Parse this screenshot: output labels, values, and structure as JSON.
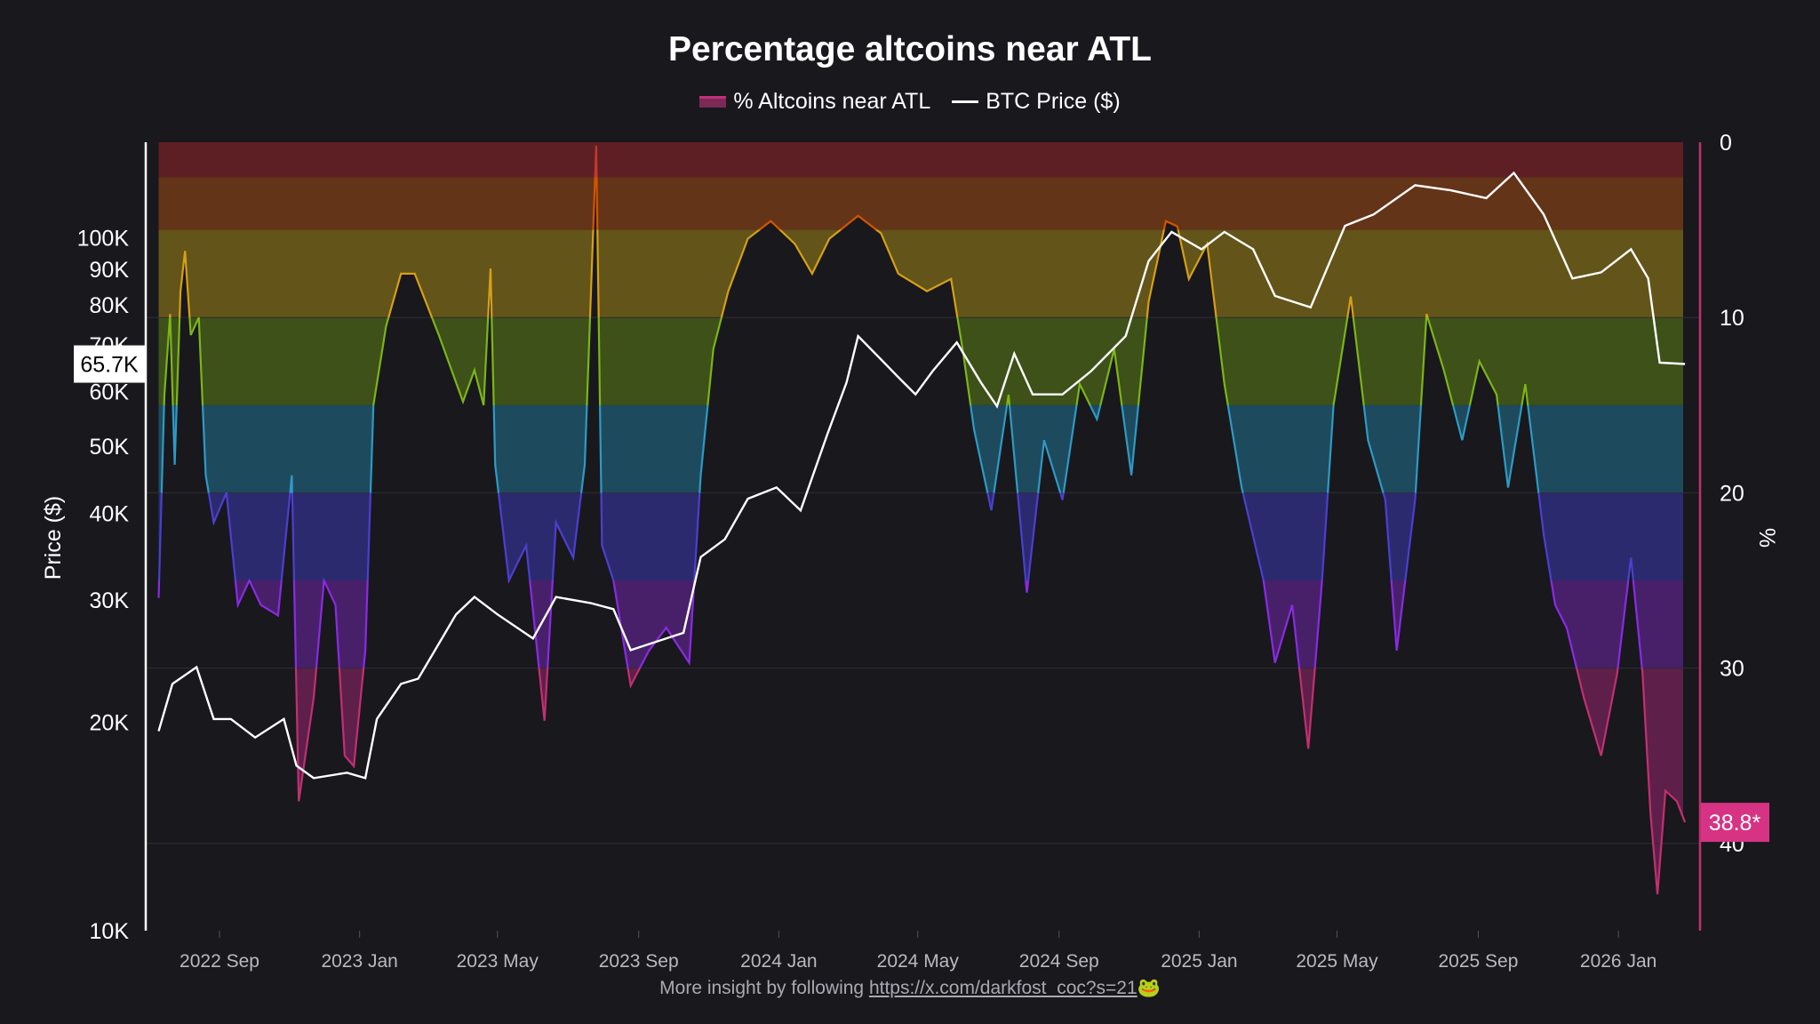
{
  "chart_data": {
    "type": "area+line",
    "title": "Percentage altcoins near ATL",
    "legend": [
      "% Altcoins near ATL",
      "BTC Price ($)"
    ],
    "legend_placement": "top-center",
    "left_axis": {
      "label": "Price ($)",
      "scale": "log",
      "range": [
        10000,
        130000
      ],
      "ticks": [
        "10K",
        "20K",
        "30K",
        "40K",
        "50K",
        "60K",
        "70K",
        "80K",
        "90K",
        "100K"
      ],
      "tick_values": [
        10000,
        20000,
        30000,
        40000,
        50000,
        60000,
        70000,
        80000,
        90000,
        100000
      ]
    },
    "right_axis": {
      "label": "%",
      "inverted": true,
      "range": [
        0,
        45
      ],
      "ticks": [
        "0",
        "10",
        "20",
        "30",
        "40"
      ],
      "tick_values": [
        0,
        10,
        20,
        30,
        40
      ]
    },
    "x_ticks": [
      {
        "label": "2022 Sep",
        "date": "2022-09-01"
      },
      {
        "label": "2023 Jan",
        "date": "2023-01-01"
      },
      {
        "label": "2023 May",
        "date": "2023-05-01"
      },
      {
        "label": "2023 Sep",
        "date": "2023-09-01"
      },
      {
        "label": "2024 Jan",
        "date": "2024-01-01"
      },
      {
        "label": "2024 May",
        "date": "2024-05-01"
      },
      {
        "label": "2024 Sep",
        "date": "2024-09-01"
      },
      {
        "label": "2025 Jan",
        "date": "2025-01-01"
      },
      {
        "label": "2025 May",
        "date": "2025-05-01"
      },
      {
        "label": "2025 Sep",
        "date": "2025-09-01"
      },
      {
        "label": "2026 Jan",
        "date": "2026-01-01"
      }
    ],
    "grid": true,
    "bands": [
      {
        "from": 0,
        "to": 2,
        "color": "#5e1f24",
        "line": "#c0392b"
      },
      {
        "from": 2,
        "to": 5,
        "color": "#643418",
        "line": "#d35400"
      },
      {
        "from": 5,
        "to": 10,
        "color": "#635419",
        "line": "#d4a017"
      },
      {
        "from": 10,
        "to": 15,
        "color": "#3d5119",
        "line": "#7cb518"
      },
      {
        "from": 15,
        "to": 20,
        "color": "#1e4a5e",
        "line": "#2e9ac4"
      },
      {
        "from": 20,
        "to": 25,
        "color": "#2c2a6e",
        "line": "#4b3fd0"
      },
      {
        "from": 25,
        "to": 30,
        "color": "#48206a",
        "line": "#8a2be2"
      },
      {
        "from": 30,
        "to": 45,
        "color": "#5e1f4a",
        "line": "#c2306f"
      }
    ],
    "series": [
      {
        "name": "% Altcoins near ATL",
        "axis": "right",
        "data": [
          [
            "2022-07-10",
            26
          ],
          [
            "2022-07-15",
            14.4
          ],
          [
            "2022-07-20",
            9.8
          ],
          [
            "2022-07-24",
            18.4
          ],
          [
            "2022-07-29",
            8.5
          ],
          [
            "2022-08-02",
            6.2
          ],
          [
            "2022-08-07",
            11
          ],
          [
            "2022-08-14",
            10
          ],
          [
            "2022-08-20",
            19
          ],
          [
            "2022-08-27",
            21.7
          ],
          [
            "2022-09-07",
            20
          ],
          [
            "2022-09-17",
            26.4
          ],
          [
            "2022-09-27",
            25
          ],
          [
            "2022-10-07",
            26.4
          ],
          [
            "2022-10-22",
            27
          ],
          [
            "2022-11-03",
            19
          ],
          [
            "2022-11-09",
            37.6
          ],
          [
            "2022-11-22",
            31.7
          ],
          [
            "2022-12-01",
            25
          ],
          [
            "2022-12-11",
            26.4
          ],
          [
            "2022-12-19",
            35
          ],
          [
            "2022-12-27",
            35.6
          ],
          [
            "2023-01-06",
            29
          ],
          [
            "2023-01-13",
            15
          ],
          [
            "2023-01-24",
            10.5
          ],
          [
            "2023-02-06",
            7.5
          ],
          [
            "2023-02-18",
            7.5
          ],
          [
            "2023-03-11",
            11
          ],
          [
            "2023-04-01",
            14.8
          ],
          [
            "2023-04-11",
            13
          ],
          [
            "2023-04-19",
            15
          ],
          [
            "2023-04-25",
            7.2
          ],
          [
            "2023-04-29",
            18.4
          ],
          [
            "2023-05-11",
            25
          ],
          [
            "2023-05-26",
            23
          ],
          [
            "2023-06-11",
            33
          ],
          [
            "2023-06-21",
            21.7
          ],
          [
            "2023-07-06",
            23.7
          ],
          [
            "2023-07-16",
            18.4
          ],
          [
            "2023-07-26",
            0.2
          ],
          [
            "2023-07-31",
            23
          ],
          [
            "2023-08-10",
            25
          ],
          [
            "2023-08-25",
            31
          ],
          [
            "2023-09-10",
            29
          ],
          [
            "2023-09-25",
            27.7
          ],
          [
            "2023-10-15",
            29.7
          ],
          [
            "2023-10-25",
            19
          ],
          [
            "2023-11-05",
            11.8
          ],
          [
            "2023-11-18",
            8.5
          ],
          [
            "2023-12-05",
            5.5
          ],
          [
            "2023-12-25",
            4.5
          ],
          [
            "2024-01-15",
            5.8
          ],
          [
            "2024-01-30",
            7.5
          ],
          [
            "2024-02-14",
            5.5
          ],
          [
            "2024-03-10",
            4.2
          ],
          [
            "2024-03-30",
            5.2
          ],
          [
            "2024-04-14",
            7.5
          ],
          [
            "2024-05-09",
            8.5
          ],
          [
            "2024-05-30",
            7.8
          ],
          [
            "2024-06-09",
            11.8
          ],
          [
            "2024-06-19",
            16.4
          ],
          [
            "2024-07-04",
            21
          ],
          [
            "2024-07-19",
            14.4
          ],
          [
            "2024-08-04",
            25.7
          ],
          [
            "2024-08-19",
            17
          ],
          [
            "2024-09-04",
            20.4
          ],
          [
            "2024-09-19",
            13.8
          ],
          [
            "2024-10-04",
            15.8
          ],
          [
            "2024-10-19",
            11.8
          ],
          [
            "2024-11-03",
            19
          ],
          [
            "2024-11-18",
            9.1
          ],
          [
            "2024-12-03",
            4.5
          ],
          [
            "2024-12-13",
            4.8
          ],
          [
            "2024-12-23",
            7.8
          ],
          [
            "2025-01-08",
            5.8
          ],
          [
            "2025-01-23",
            13.8
          ],
          [
            "2025-02-07",
            19.7
          ],
          [
            "2025-02-26",
            25
          ],
          [
            "2025-03-08",
            29.7
          ],
          [
            "2025-03-23",
            26.4
          ],
          [
            "2025-04-06",
            34.6
          ],
          [
            "2025-04-18",
            25
          ],
          [
            "2025-04-28",
            15
          ],
          [
            "2025-05-13",
            8.8
          ],
          [
            "2025-05-28",
            17
          ],
          [
            "2025-06-12",
            20.4
          ],
          [
            "2025-06-22",
            29
          ],
          [
            "2025-07-08",
            20.4
          ],
          [
            "2025-07-18",
            9.8
          ],
          [
            "2025-08-02",
            13
          ],
          [
            "2025-08-18",
            17
          ],
          [
            "2025-09-02",
            12.5
          ],
          [
            "2025-09-17",
            14.4
          ],
          [
            "2025-09-27",
            19.7
          ],
          [
            "2025-10-12",
            13.8
          ],
          [
            "2025-10-28",
            22.4
          ],
          [
            "2025-11-07",
            26.4
          ],
          [
            "2025-11-17",
            27.7
          ],
          [
            "2025-12-02",
            31.7
          ],
          [
            "2025-12-17",
            35
          ],
          [
            "2025-12-31",
            30.3
          ],
          [
            "2026-01-12",
            23.7
          ],
          [
            "2026-01-22",
            30.3
          ],
          [
            "2026-01-29",
            38.3
          ],
          [
            "2026-02-04",
            42.9
          ],
          [
            "2026-02-11",
            37
          ],
          [
            "2026-02-21",
            37.6
          ],
          [
            "2026-02-28",
            38.8
          ]
        ]
      },
      {
        "name": "BTC Price ($)",
        "axis": "left",
        "color": "#ffffff",
        "data": [
          [
            "2022-07-10",
            19400
          ],
          [
            "2022-07-22",
            22700
          ],
          [
            "2022-08-12",
            24000
          ],
          [
            "2022-08-27",
            20200
          ],
          [
            "2022-09-11",
            20200
          ],
          [
            "2022-10-02",
            19000
          ],
          [
            "2022-10-27",
            20200
          ],
          [
            "2022-11-07",
            17300
          ],
          [
            "2022-11-22",
            16600
          ],
          [
            "2022-12-21",
            16900
          ],
          [
            "2023-01-06",
            16600
          ],
          [
            "2023-01-16",
            20200
          ],
          [
            "2023-02-06",
            22700
          ],
          [
            "2023-02-21",
            23100
          ],
          [
            "2023-03-26",
            28600
          ],
          [
            "2023-04-11",
            30300
          ],
          [
            "2023-05-01",
            28600
          ],
          [
            "2023-06-01",
            26400
          ],
          [
            "2023-06-21",
            30300
          ],
          [
            "2023-07-21",
            29700
          ],
          [
            "2023-08-10",
            29100
          ],
          [
            "2023-08-25",
            25400
          ],
          [
            "2023-10-10",
            26900
          ],
          [
            "2023-10-25",
            34600
          ],
          [
            "2023-11-15",
            36700
          ],
          [
            "2023-12-05",
            42000
          ],
          [
            "2023-12-30",
            43600
          ],
          [
            "2024-01-20",
            40400
          ],
          [
            "2024-02-12",
            51900
          ],
          [
            "2024-02-29",
            61800
          ],
          [
            "2024-03-10",
            72100
          ],
          [
            "2024-03-30",
            66700
          ],
          [
            "2024-04-14",
            62900
          ],
          [
            "2024-04-29",
            59400
          ],
          [
            "2024-05-14",
            64200
          ],
          [
            "2024-06-04",
            70600
          ],
          [
            "2024-06-25",
            61800
          ],
          [
            "2024-07-09",
            57100
          ],
          [
            "2024-07-24",
            68000
          ],
          [
            "2024-08-09",
            59400
          ],
          [
            "2024-09-04",
            59400
          ],
          [
            "2024-09-29",
            64200
          ],
          [
            "2024-10-29",
            72100
          ],
          [
            "2024-11-18",
            92500
          ],
          [
            "2024-12-08",
            101900
          ],
          [
            "2025-01-03",
            96200
          ],
          [
            "2025-01-23",
            101900
          ],
          [
            "2025-02-17",
            96200
          ],
          [
            "2025-03-08",
            82400
          ],
          [
            "2025-04-08",
            79300
          ],
          [
            "2025-05-08",
            104000
          ],
          [
            "2025-06-02",
            108000
          ],
          [
            "2025-07-08",
            119000
          ],
          [
            "2025-08-08",
            117000
          ],
          [
            "2025-09-08",
            114000
          ],
          [
            "2025-10-02",
            124000
          ],
          [
            "2025-10-28",
            108000
          ],
          [
            "2025-11-22",
            87300
          ],
          [
            "2025-12-17",
            89100
          ],
          [
            "2026-01-12",
            96200
          ],
          [
            "2026-01-27",
            87300
          ],
          [
            "2026-02-06",
            66000
          ],
          [
            "2026-02-28",
            65700
          ]
        ]
      }
    ],
    "last_value_labels": {
      "price": "65.7K",
      "percent": "38.8*"
    }
  },
  "footer": {
    "text": "More insight by following ",
    "link": "https://x.com/darkfost_coc?s=21",
    "emoji": "🐸"
  },
  "colors": {
    "background": "#18181d",
    "accent": "#d63384"
  }
}
